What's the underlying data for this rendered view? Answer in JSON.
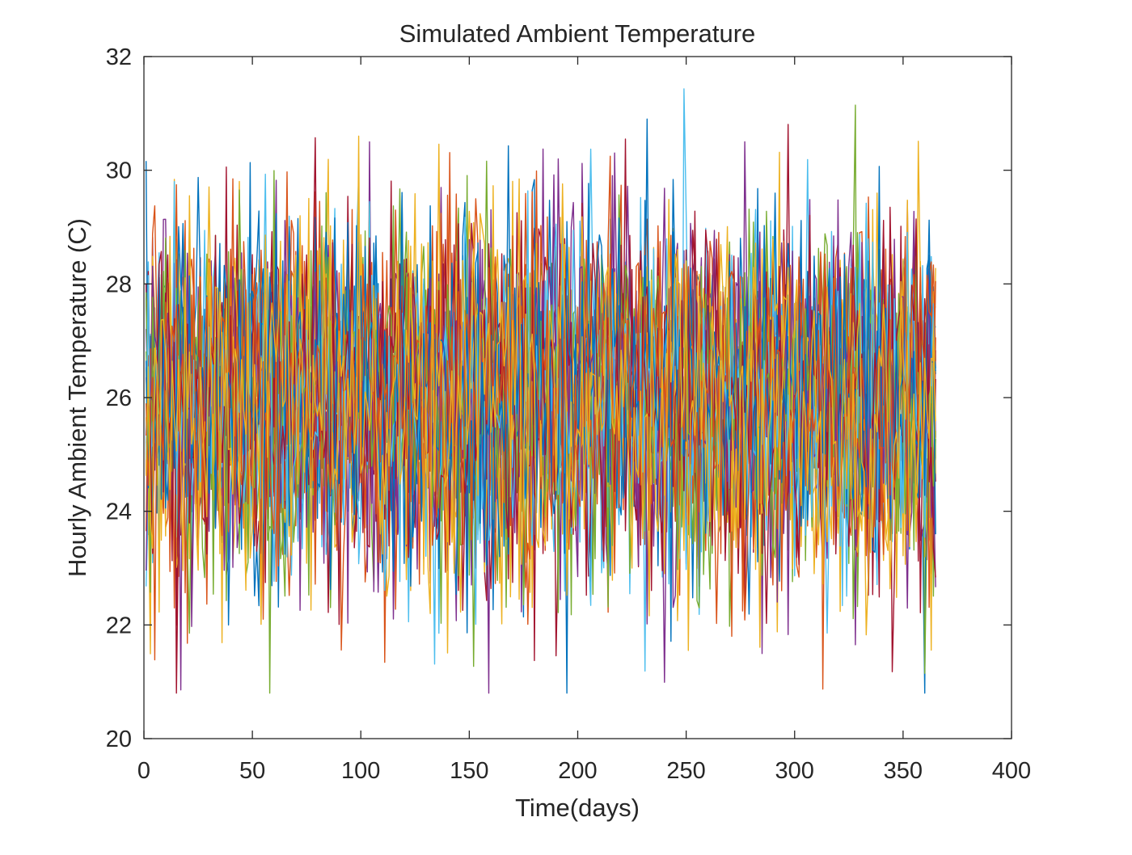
{
  "chart_data": {
    "type": "line",
    "title": "Simulated Ambient Temperature",
    "xlabel": "Time(days)",
    "ylabel": "Hourly Ambient Temperature (C)",
    "xlim": [
      0,
      400
    ],
    "ylim": [
      20,
      32
    ],
    "xticks": [
      0,
      50,
      100,
      150,
      200,
      250,
      300,
      350,
      400
    ],
    "yticks": [
      20,
      22,
      24,
      26,
      28,
      30,
      32
    ],
    "grid": false,
    "legend": "none",
    "series_count": 24,
    "x_range": [
      1,
      365
    ],
    "series_description": "24 hourly series of daily random temperature, mean ~26 C, std ~1.5 C, range ~20.8 to ~32",
    "mean": 26,
    "std": 1.5,
    "colors": [
      "#0072BD",
      "#D95319",
      "#EDB120",
      "#7E2F8E",
      "#77AC30",
      "#4DBEEE",
      "#A2142F"
    ]
  }
}
